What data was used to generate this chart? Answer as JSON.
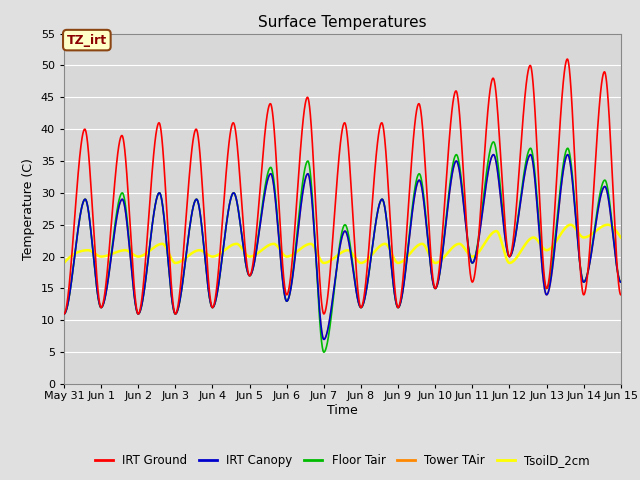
{
  "title": "Surface Temperatures",
  "xlabel": "Time",
  "ylabel": "Temperature (C)",
  "ylim": [
    0,
    55
  ],
  "background_color": "#E0E0E0",
  "plot_bg_color": "#D8D8D8",
  "grid_color": "#FFFFFF",
  "tz_label": "TZ_irt",
  "tz_bg": "#FFFFC8",
  "tz_border": "#8B4513",
  "legend_entries": [
    "IRT Ground",
    "IRT Canopy",
    "Floor Tair",
    "Tower TAir",
    "TsoilD_2cm"
  ],
  "line_colors": [
    "#FF0000",
    "#0000CC",
    "#00BB00",
    "#FF8800",
    "#FFFF00"
  ],
  "line_widths": [
    1.2,
    1.2,
    1.2,
    1.2,
    1.8
  ],
  "n_days": 15,
  "tick_labels": [
    "May 31",
    "Jun 1",
    "Jun 2",
    "Jun 3",
    "Jun 4",
    "Jun 5",
    "Jun 6",
    "Jun 7",
    "Jun 8",
    "Jun 9",
    "Jun 10",
    "Jun 11",
    "Jun 12",
    "Jun 13",
    "Jun 14",
    "Jun 15"
  ],
  "yticks": [
    0,
    5,
    10,
    15,
    20,
    25,
    30,
    35,
    40,
    45,
    50,
    55
  ],
  "day_peaks_irt_ground": [
    40,
    39,
    41,
    40,
    41,
    44,
    45,
    41,
    41,
    44,
    46,
    48,
    50,
    51,
    49
  ],
  "day_peaks_irt_canopy": [
    29,
    29,
    30,
    29,
    30,
    33,
    33,
    24,
    29,
    32,
    35,
    36,
    36,
    36,
    31
  ],
  "day_peaks_floor_tair": [
    29,
    30,
    30,
    29,
    30,
    34,
    35,
    25,
    29,
    33,
    36,
    38,
    37,
    37,
    32
  ],
  "day_peaks_tower_tair": [
    29,
    29,
    30,
    29,
    30,
    33,
    33,
    24,
    29,
    32,
    35,
    36,
    36,
    36,
    31
  ],
  "day_peaks_tsoil": [
    21,
    21,
    22,
    21,
    22,
    22,
    22,
    21,
    22,
    22,
    22,
    24,
    23,
    25,
    25
  ],
  "night_min_irt": [
    11,
    12,
    11,
    11,
    12,
    17,
    14,
    11,
    12,
    12,
    15,
    16,
    20,
    15,
    14
  ],
  "night_min_canopy": [
    11,
    12,
    11,
    11,
    12,
    17,
    13,
    7,
    12,
    12,
    15,
    19,
    20,
    14,
    16
  ],
  "night_min_floor": [
    11,
    12,
    11,
    11,
    12,
    17,
    13,
    5,
    12,
    12,
    15,
    19,
    20,
    15,
    16
  ],
  "night_min_tower": [
    11,
    12,
    11,
    11,
    12,
    17,
    13,
    7,
    12,
    12,
    15,
    19,
    20,
    14,
    16
  ],
  "night_min_tsoil": [
    19,
    20,
    20,
    19,
    20,
    20,
    20,
    19,
    19,
    19,
    19,
    20,
    19,
    21,
    23
  ]
}
